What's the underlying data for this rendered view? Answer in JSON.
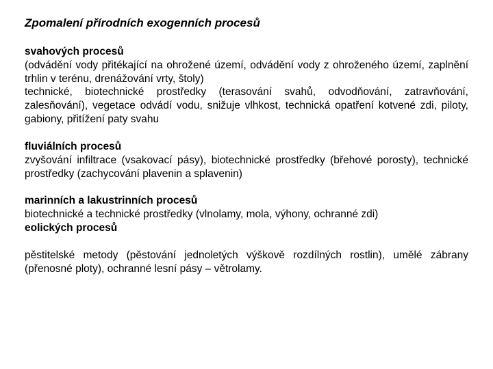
{
  "title": "Zpomalení přírodních exogenních procesů",
  "sections": [
    {
      "heading": "svahových procesů",
      "body": "(odvádění vody přitékající na ohrožené území, odvádění vody z ohroženého území, zaplnění trhlin v terénu, drenážování vrty, štoly)\ntechnické, biotechnické prostředky (terasování svahů, odvodňování, zatravňování, zalesňování), vegetace odvádí vodu, snižuje vlhkost, technická opatření kotvené zdi, piloty, gabiony, přitížení paty svahu"
    },
    {
      "heading": "fluviálních procesů",
      "body": "zvyšování infiltrace (vsakovací pásy), biotechnické prostředky (břehové porosty), technické prostředky (zachycování plavenin a splavenin)"
    },
    {
      "heading": "marinních a lakustrinních procesů",
      "body": "biotechnické a technické prostředky (vlnolamy, mola, výhony, ochranné zdi)",
      "extraHeading": "eolických procesů"
    },
    {
      "heading": "",
      "body": "pěstitelské metody (pěstování jednoletých výškově rozdílných rostlin), umělé zábrany (přenosné ploty), ochranné lesní pásy – větrolamy."
    }
  ]
}
